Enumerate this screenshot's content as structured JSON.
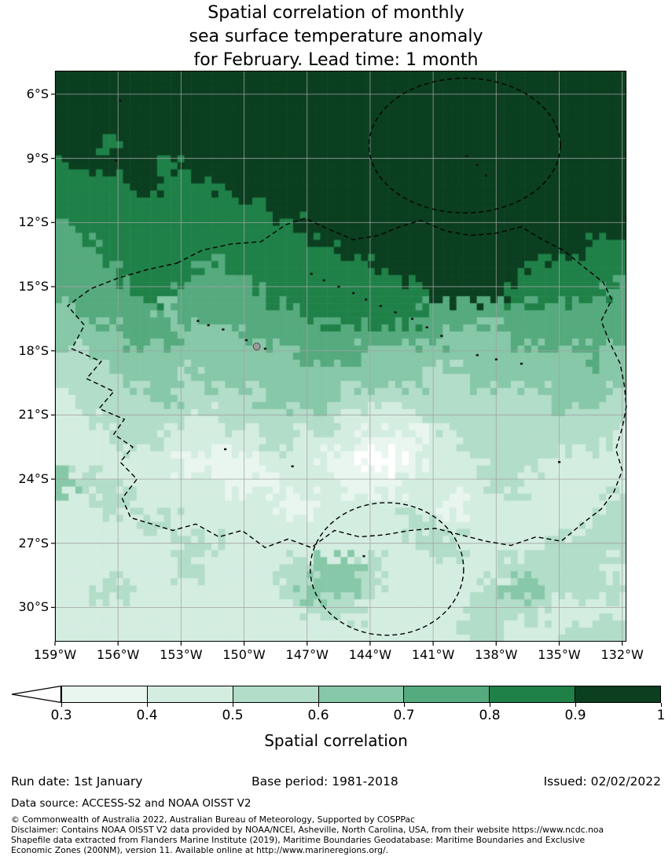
{
  "title": {
    "line1": "Spatial correlation of monthly",
    "line2": "sea surface temperature anomaly",
    "line3": "for February. Lead time: 1 month"
  },
  "chart_data": {
    "type": "heatmap",
    "title": "Spatial correlation of monthly sea surface temperature anomaly for February. Lead time: 1 month",
    "colorbar_label": "Spatial correlation",
    "colorbar_tick_labels": [
      "0.3",
      "0.4",
      "0.5",
      "0.6",
      "0.7",
      "0.8",
      "0.9",
      "1"
    ],
    "bin_edges": [
      0.3,
      0.4,
      0.5,
      0.6,
      0.7,
      0.8,
      0.9,
      1.0
    ],
    "palette": [
      "#ffffff",
      "#e9f6ef",
      "#d4ede1",
      "#b2ddc8",
      "#86c8a8",
      "#55aa7e",
      "#1f8148",
      "#0b3f20"
    ],
    "under_min_color": "#ffffff",
    "lon_range_w": [
      159,
      131.8
    ],
    "lat_range_s": [
      4.9,
      31.6
    ],
    "lon_tick_values": [
      159,
      156,
      153,
      150,
      147,
      144,
      141,
      138,
      135,
      132
    ],
    "lon_tick_labels": [
      "159°W",
      "156°W",
      "153°W",
      "150°W",
      "147°W",
      "144°W",
      "141°W",
      "138°W",
      "135°W",
      "132°W"
    ],
    "lat_tick_values": [
      6,
      9,
      12,
      15,
      18,
      21,
      24,
      27,
      30
    ],
    "lat_tick_labels": [
      "6°S",
      "9°S",
      "12°S",
      "15°S",
      "18°S",
      "21°S",
      "24°S",
      "27°S",
      "30°S"
    ],
    "grid": {
      "nrows": 27,
      "ncols": 28,
      "bin_meaning": "digit d = correlation bin: 0:<0.3, 1:0.3-0.4, 2:0.4-0.5, 3:0.5-0.6, 4:0.6-0.7, 5:0.7-0.8, 6:0.8-0.9, 7:0.9-1.0",
      "bin_rows": [
        "7777777777777777777777777777",
        "7777777777777777777777777777",
        "7777777777777777777777777777",
        "7767777777777777777777777777",
        "6777767777777777777777777777",
        "6666766677777777777777777777",
        "6666666666777777777777777777",
        "5666666666667777777777777777",
        "5566666666666677777777777766",
        "5556666566666666777777766666",
        "5555665555666666667777666665",
        "4555545555556666665555555555",
        "4445554445555555555444555555",
        "3344444444445554444444444454",
        "3334443444444444443344444444",
        "2333343333444433333333334443",
        "2233332233333322223333333333",
        "2223322222332221112233333332",
        "2222221111222110012223332222",
        "4332222211122211122223322222",
        "2233222222211222222122222223",
        "2222332222222222233222222233",
        "2222223322222222223322223333",
        "2222223222233443222222333332",
        "2233222222234443222223443333",
        "2222222222223332222233332222",
        "2222222222222222222233222333"
      ]
    },
    "eez_boundaries": {
      "main_polygon": [
        [
          153.2,
          13.9
        ],
        [
          152.0,
          13.3
        ],
        [
          150.6,
          13.0
        ],
        [
          149.2,
          12.9
        ],
        [
          148.0,
          12.1
        ],
        [
          147.1,
          11.8
        ],
        [
          146.0,
          12.3
        ],
        [
          144.8,
          12.8
        ],
        [
          143.6,
          12.6
        ],
        [
          142.6,
          12.2
        ],
        [
          141.6,
          11.9
        ],
        [
          140.4,
          12.4
        ],
        [
          139.2,
          12.6
        ],
        [
          138.0,
          12.5
        ],
        [
          136.8,
          12.2
        ],
        [
          135.8,
          12.8
        ],
        [
          134.8,
          13.3
        ],
        [
          133.8,
          14.1
        ],
        [
          132.9,
          14.8
        ],
        [
          132.5,
          15.6
        ],
        [
          133.0,
          16.6
        ],
        [
          132.6,
          17.6
        ],
        [
          132.1,
          18.6
        ],
        [
          131.9,
          19.6
        ],
        [
          131.8,
          20.6
        ],
        [
          132.0,
          21.6
        ],
        [
          132.3,
          22.6
        ],
        [
          132.0,
          23.6
        ],
        [
          132.4,
          24.6
        ],
        [
          133.0,
          25.4
        ],
        [
          133.8,
          26.0
        ],
        [
          134.9,
          26.9
        ],
        [
          136.1,
          26.7
        ],
        [
          137.3,
          27.1
        ],
        [
          138.5,
          26.9
        ],
        [
          139.7,
          26.6
        ],
        [
          140.9,
          26.3
        ],
        [
          142.1,
          26.4
        ],
        [
          143.3,
          26.6
        ],
        [
          144.5,
          26.7
        ],
        [
          145.7,
          26.4
        ],
        [
          146.8,
          27.2
        ],
        [
          147.9,
          26.8
        ],
        [
          149.0,
          27.2
        ],
        [
          150.1,
          26.4
        ],
        [
          151.2,
          26.7
        ],
        [
          152.3,
          26.1
        ],
        [
          153.4,
          26.4
        ],
        [
          154.4,
          26.1
        ],
        [
          155.4,
          25.8
        ],
        [
          155.8,
          24.9
        ],
        [
          155.1,
          24.0
        ],
        [
          155.9,
          23.2
        ],
        [
          155.3,
          22.5
        ],
        [
          156.2,
          21.9
        ],
        [
          155.7,
          21.2
        ],
        [
          156.9,
          20.7
        ],
        [
          156.2,
          19.9
        ],
        [
          157.5,
          19.3
        ],
        [
          156.8,
          18.5
        ],
        [
          158.2,
          17.9
        ],
        [
          157.6,
          16.8
        ],
        [
          158.4,
          15.9
        ],
        [
          157.3,
          15.1
        ],
        [
          156.0,
          14.6
        ],
        [
          154.6,
          14.2
        ]
      ],
      "north_ellipse": {
        "center": [
          139.5,
          8.4
        ],
        "rx": 4.55,
        "ry": 3.15
      },
      "south_ellipse": {
        "center": [
          143.2,
          28.2
        ],
        "rx": 3.65,
        "ry": 3.1
      }
    },
    "islands": [
      [
        155.9,
        6.3
      ],
      [
        156.1,
        9.1
      ],
      [
        139.4,
        8.9
      ],
      [
        138.9,
        9.3
      ],
      [
        138.5,
        9.8
      ],
      [
        146.8,
        14.4
      ],
      [
        146.2,
        14.7
      ],
      [
        145.5,
        15.0
      ],
      [
        144.8,
        15.3
      ],
      [
        144.2,
        15.6
      ],
      [
        143.5,
        15.9
      ],
      [
        142.8,
        16.2
      ],
      [
        142.0,
        16.5
      ],
      [
        141.3,
        16.9
      ],
      [
        140.6,
        17.3
      ],
      [
        138.9,
        18.2
      ],
      [
        138.0,
        18.4
      ],
      [
        136.8,
        18.6
      ],
      [
        152.2,
        16.6
      ],
      [
        151.7,
        16.8
      ],
      [
        151.0,
        17.0
      ],
      [
        149.9,
        17.5
      ],
      [
        149.0,
        17.9
      ],
      [
        150.9,
        22.6
      ],
      [
        147.7,
        23.4
      ],
      [
        144.3,
        27.6
      ],
      [
        135.0,
        23.2
      ]
    ],
    "tahiti_marker": [
      149.4,
      17.8
    ]
  },
  "footer": {
    "run_date": "Run date: 1st January",
    "base_period": "Base period: 1981-2018",
    "issued": "Issued: 02/02/2022",
    "data_source": "Data source: ACCESS-S2 and NOAA OISST V2",
    "copyright": "© Commonwealth of Australia 2022, Australian Bureau of Meteorology, Supported by COSPPac",
    "disclaimer_line1": "Disclaimer: Contains NOAA OISST V2 data provided by NOAA/NCEI, Asheville, North Carolina, USA, from their website https://www.ncdc.noa",
    "disclaimer_line2": "Shapefile data extracted from Flanders Marine Institute (2019), Maritime Boundaries Geodatabase: Maritime Boundaries and Exclusive",
    "disclaimer_line3": "Economic Zones (200NM), version 11. Available online at http://www.marineregions.org/."
  }
}
